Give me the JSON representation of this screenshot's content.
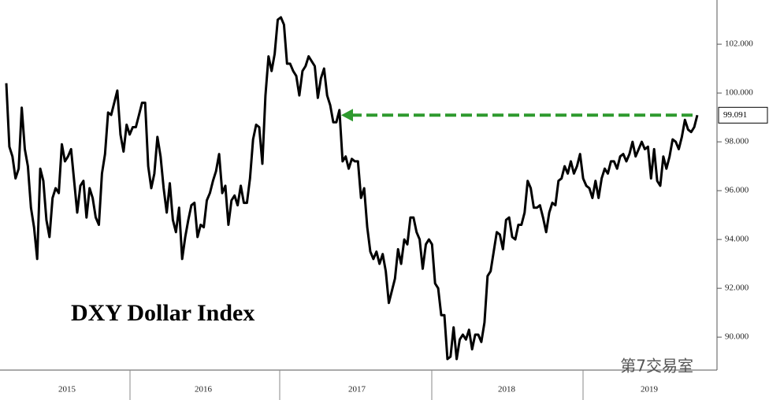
{
  "chart_data": {
    "type": "line",
    "title": "DXY Dollar Index",
    "watermark": "第7交易室",
    "x_labels": [
      "2015",
      "2016",
      "2017",
      "2018",
      "2019"
    ],
    "series": [
      {
        "name": "DXY",
        "color": "#000000",
        "values": [
          100.4,
          97.8,
          97.4,
          96.5,
          96.9,
          99.4,
          97.7,
          97.0,
          95.3,
          94.5,
          93.2,
          96.9,
          96.4,
          94.8,
          94.1,
          95.7,
          96.1,
          95.9,
          97.9,
          97.2,
          97.4,
          97.7,
          96.4,
          95.1,
          96.2,
          96.4,
          94.9,
          96.1,
          95.7,
          94.9,
          94.6,
          96.7,
          97.5,
          99.2,
          99.1,
          99.6,
          100.1,
          98.3,
          97.6,
          98.7,
          98.3,
          98.6,
          98.6,
          99.1,
          99.6,
          99.6,
          97.0,
          96.1,
          96.7,
          98.2,
          97.4,
          96.1,
          95.1,
          96.3,
          94.8,
          94.3,
          95.3,
          93.2,
          94.1,
          94.8,
          95.4,
          95.5,
          94.1,
          94.6,
          94.5,
          95.6,
          95.9,
          96.4,
          96.8,
          97.5,
          95.9,
          96.2,
          94.6,
          95.6,
          95.8,
          95.4,
          96.2,
          95.5,
          95.5,
          96.5,
          98.1,
          98.7,
          98.6,
          97.1,
          99.9,
          101.5,
          100.9,
          101.6,
          103.0,
          103.1,
          102.8,
          101.2,
          101.2,
          100.9,
          100.7,
          99.9,
          100.9,
          101.1,
          101.5,
          101.3,
          101.1,
          99.8,
          100.6,
          101.0,
          99.9,
          99.5,
          98.8,
          98.8,
          99.3,
          97.2,
          97.4,
          96.9,
          97.3,
          97.2,
          97.2,
          95.7,
          96.1,
          94.5,
          93.5,
          93.2,
          93.5,
          93.0,
          93.4,
          92.7,
          91.4,
          91.9,
          92.4,
          93.6,
          93.0,
          94.0,
          93.8,
          94.9,
          94.9,
          94.3,
          94.0,
          92.8,
          93.8,
          94.0,
          93.8,
          92.2,
          92.0,
          90.9,
          90.9,
          89.1,
          89.2,
          90.4,
          89.1,
          89.9,
          90.1,
          89.9,
          90.3,
          89.5,
          90.1,
          90.1,
          89.8,
          90.6,
          92.5,
          92.7,
          93.5,
          94.3,
          94.2,
          93.6,
          94.8,
          94.9,
          94.1,
          94.0,
          94.6,
          94.6,
          95.1,
          96.4,
          96.1,
          95.3,
          95.3,
          95.4,
          94.9,
          94.3,
          95.1,
          95.5,
          95.4,
          96.4,
          96.5,
          97.0,
          96.7,
          97.2,
          96.7,
          97.0,
          97.5,
          96.5,
          96.2,
          96.1,
          95.7,
          96.4,
          95.7,
          96.5,
          96.9,
          96.7,
          97.2,
          97.2,
          96.9,
          97.4,
          97.5,
          97.2,
          97.5,
          98.0,
          97.4,
          97.7,
          98.0,
          97.7,
          97.8,
          96.5,
          97.7,
          96.4,
          96.2,
          97.4,
          96.9,
          97.4,
          98.1,
          98.0,
          97.7,
          98.2,
          98.9,
          98.5,
          98.4,
          98.6,
          99.091
        ]
      }
    ],
    "ylim": [
      88.65,
      103.81
    ],
    "yticks": [
      {
        "value": 90,
        "label": "90.000"
      },
      {
        "value": 92,
        "label": "92.000"
      },
      {
        "value": 94,
        "label": "94.000"
      },
      {
        "value": 96,
        "label": "96.000"
      },
      {
        "value": 98,
        "label": "98.000"
      },
      {
        "value": 100,
        "label": "100.000"
      },
      {
        "value": 102,
        "label": "102.000"
      }
    ],
    "arrow_color": "#2e9a2e",
    "grid": false
  }
}
